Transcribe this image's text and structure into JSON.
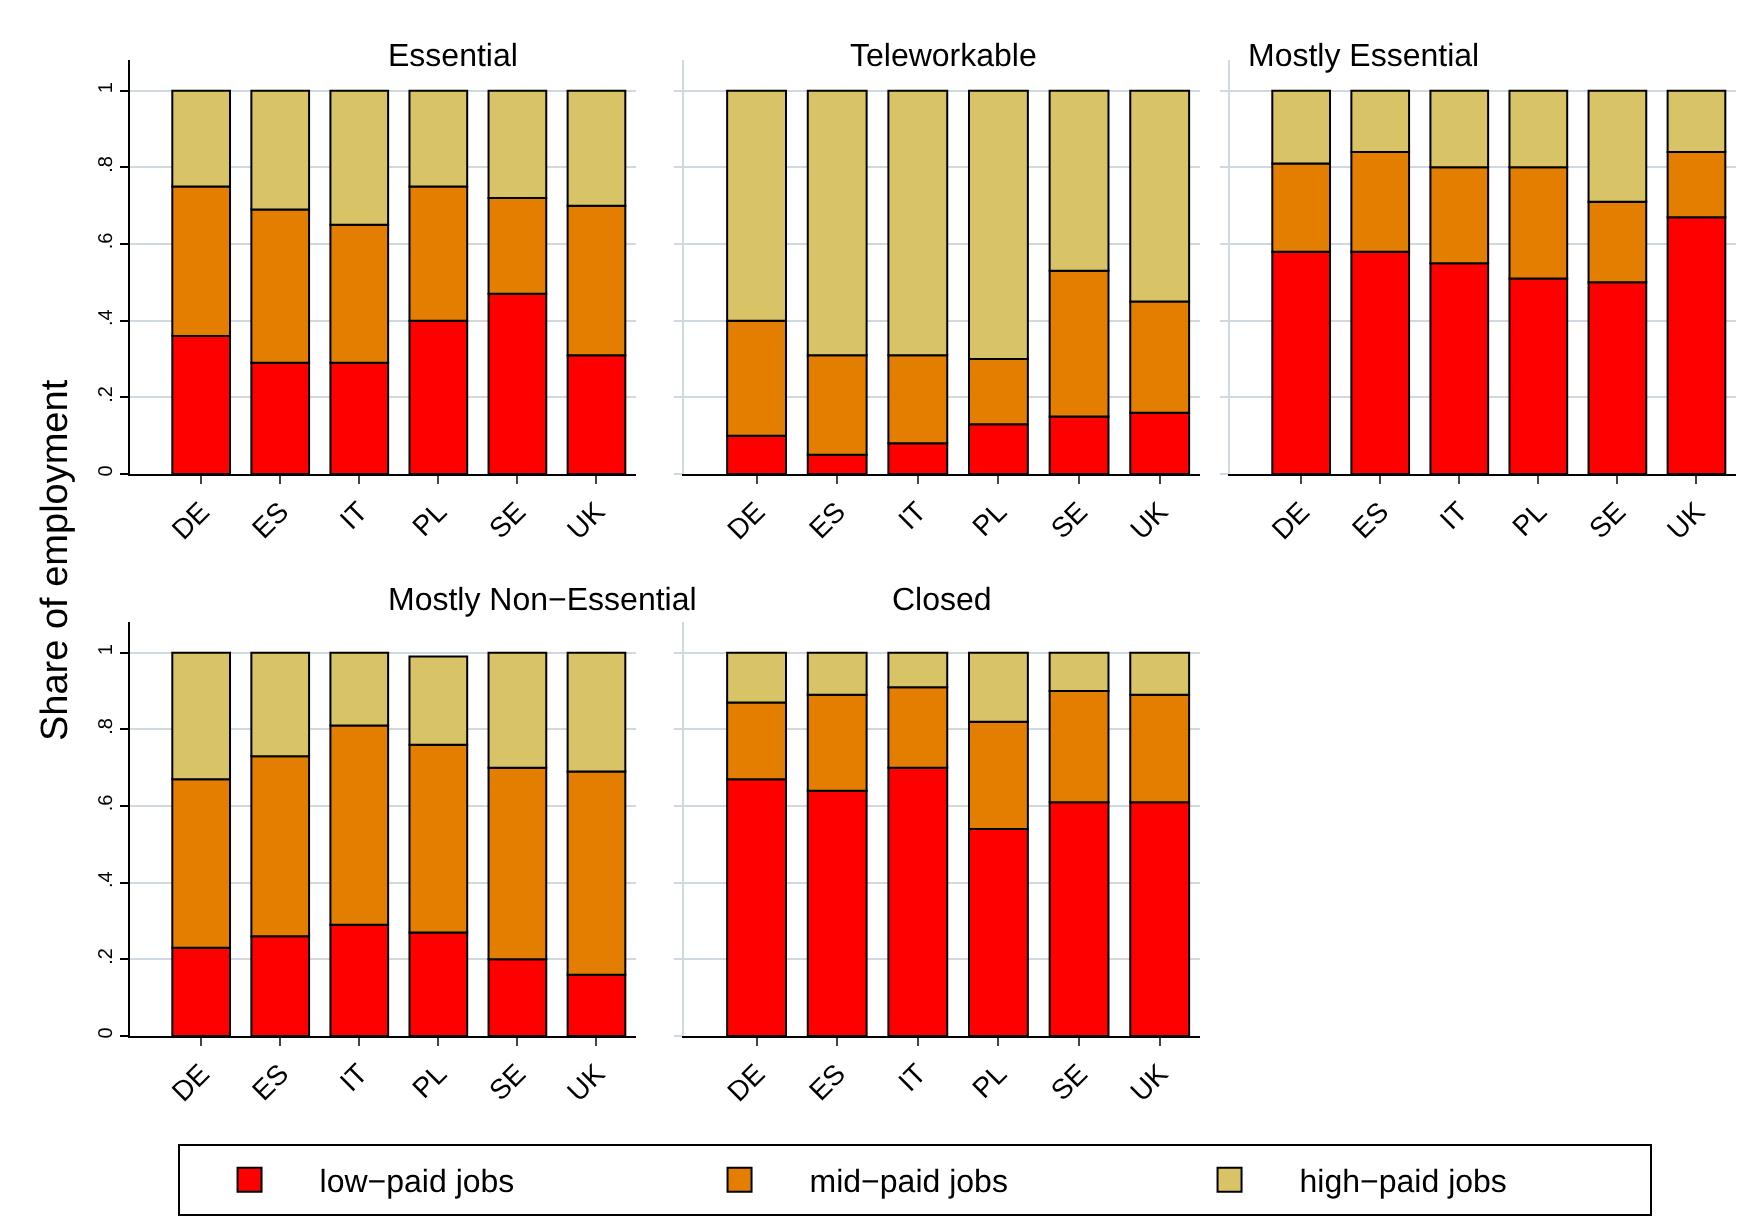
{
  "chart_data": [
    {
      "type": "bar",
      "title": "Essential",
      "ylabel": "Share of employment",
      "categories": [
        "DE",
        "ES",
        "IT",
        "PL",
        "SE",
        "UK"
      ],
      "stacked": true,
      "ylim": [
        0,
        1.08
      ],
      "yticks": [
        0,
        {
          "value": 0.2,
          "label": ".2"
        },
        {
          "value": 0.4,
          "label": ".4"
        },
        {
          "value": 0.6,
          "label": ".6"
        },
        {
          "value": 0.8,
          "label": ".8"
        },
        1
      ],
      "grid": "y",
      "legend": "bottom",
      "series": [
        {
          "name": "low−paid jobs",
          "color": "#ff0000",
          "values": [
            0.36,
            0.29,
            0.29,
            0.4,
            0.47,
            0.31
          ]
        },
        {
          "name": "mid−paid jobs",
          "color": "#e37e00",
          "values": [
            0.39,
            0.4,
            0.36,
            0.35,
            0.25,
            0.39
          ]
        },
        {
          "name": "high−paid jobs",
          "color": "#d8c367",
          "values": [
            0.25,
            0.31,
            0.35,
            0.25,
            0.28,
            0.3
          ]
        }
      ]
    },
    {
      "type": "bar",
      "title": "Teleworkable",
      "categories": [
        "DE",
        "ES",
        "IT",
        "PL",
        "SE",
        "UK"
      ],
      "stacked": true,
      "ylim": [
        0,
        1.08
      ],
      "yticks": [
        0,
        0.2,
        0.4,
        0.6,
        0.8,
        1
      ],
      "grid": "y",
      "tick_labels": "x",
      "series": [
        {
          "color": "#ff0000",
          "values": [
            0.1,
            0.05,
            0.08,
            0.13,
            0.15,
            0.16
          ]
        },
        {
          "color": "#e37e00",
          "values": [
            0.3,
            0.26,
            0.23,
            0.17,
            0.38,
            0.29
          ]
        },
        {
          "color": "#d8c367",
          "values": [
            0.6,
            0.69,
            0.69,
            0.7,
            0.47,
            0.55
          ]
        }
      ]
    },
    {
      "type": "bar",
      "title": "Mostly Essential",
      "categories": [
        "DE",
        "ES",
        "IT",
        "PL",
        "SE",
        "UK"
      ],
      "stacked": true,
      "ylim": [
        0,
        1.08
      ],
      "yticks": [
        0,
        0.2,
        0.4,
        0.6,
        0.8,
        1
      ],
      "grid": "y",
      "tick_labels": "x",
      "series": [
        {
          "color": "#ff0000",
          "values": [
            0.58,
            0.58,
            0.55,
            0.51,
            0.5,
            0.67
          ]
        },
        {
          "color": "#e37e00",
          "values": [
            0.23,
            0.26,
            0.25,
            0.29,
            0.21,
            0.17
          ]
        },
        {
          "color": "#d8c367",
          "values": [
            0.19,
            0.16,
            0.2,
            0.2,
            0.29,
            0.16
          ]
        }
      ]
    },
    {
      "type": "bar",
      "title": "Mostly Non−Essential",
      "categories": [
        "DE",
        "ES",
        "IT",
        "PL",
        "SE",
        "UK"
      ],
      "stacked": true,
      "ylim": [
        0,
        1.08
      ],
      "yticks": [
        0,
        {
          "value": 0.2,
          "label": ".2"
        },
        {
          "value": 0.4,
          "label": ".4"
        },
        {
          "value": 0.6,
          "label": ".6"
        },
        {
          "value": 0.8,
          "label": ".8"
        },
        1
      ],
      "grid": "y",
      "series": [
        {
          "color": "#ff0000",
          "values": [
            0.23,
            0.26,
            0.29,
            0.27,
            0.2,
            0.16
          ]
        },
        {
          "color": "#e37e00",
          "values": [
            0.44,
            0.47,
            0.52,
            0.49,
            0.5,
            0.53
          ]
        },
        {
          "color": "#d8c367",
          "values": [
            0.33,
            0.27,
            0.19,
            0.23,
            0.3,
            0.31
          ]
        }
      ]
    },
    {
      "type": "bar",
      "title": "Closed",
      "categories": [
        "DE",
        "ES",
        "IT",
        "PL",
        "SE",
        "UK"
      ],
      "stacked": true,
      "ylim": [
        0,
        1.08
      ],
      "yticks": [
        0,
        0.2,
        0.4,
        0.6,
        0.8,
        1
      ],
      "grid": "y",
      "tick_labels": "x",
      "series": [
        {
          "color": "#ff0000",
          "values": [
            0.67,
            0.64,
            0.7,
            0.54,
            0.61,
            0.61
          ]
        },
        {
          "color": "#e37e00",
          "values": [
            0.2,
            0.25,
            0.21,
            0.28,
            0.29,
            0.28
          ]
        },
        {
          "color": "#d8c367",
          "values": [
            0.13,
            0.11,
            0.09,
            0.18,
            0.1,
            0.11
          ]
        }
      ]
    }
  ]
}
